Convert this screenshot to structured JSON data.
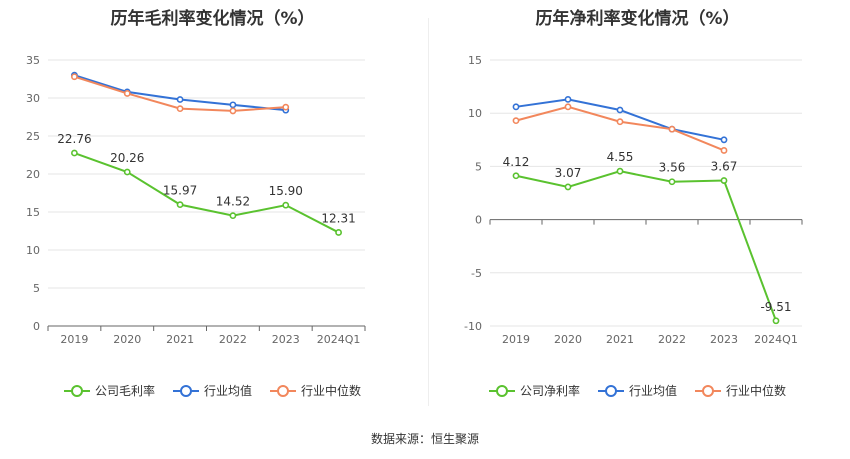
{
  "source_text": "数据来源：恒生聚源",
  "chart_data": [
    {
      "type": "line",
      "title": "历年毛利率变化情况（%）",
      "categories": [
        "2019",
        "2020",
        "2021",
        "2022",
        "2023",
        "2024Q1"
      ],
      "yticks": [
        "0",
        "5",
        "10",
        "15",
        "20",
        "25",
        "30",
        "35"
      ],
      "ylim": [
        0,
        35
      ],
      "grid": true,
      "legend_position": "bottom",
      "series": [
        {
          "name": "公司毛利率",
          "color": "#5ac22f",
          "values": [
            22.76,
            20.26,
            15.97,
            14.52,
            15.9,
            12.31
          ],
          "labels": [
            "22.76",
            "20.26",
            "15.97",
            "14.52",
            "15.90",
            "12.31"
          ]
        },
        {
          "name": "行业均值",
          "color": "#3372d6",
          "values": [
            33.0,
            30.8,
            29.8,
            29.1,
            28.4,
            null
          ]
        },
        {
          "name": "行业中位数",
          "color": "#f2875c",
          "values": [
            32.8,
            30.6,
            28.6,
            28.3,
            28.8,
            null
          ]
        }
      ]
    },
    {
      "type": "line",
      "title": "历年净利率变化情况（%）",
      "categories": [
        "2019",
        "2020",
        "2021",
        "2022",
        "2023",
        "2024Q1"
      ],
      "yticks": [
        "-10",
        "-5",
        "0",
        "5",
        "10",
        "15"
      ],
      "ylim": [
        -10,
        15
      ],
      "grid": true,
      "legend_position": "bottom",
      "series": [
        {
          "name": "公司净利率",
          "color": "#5ac22f",
          "values": [
            4.12,
            3.07,
            4.55,
            3.56,
            3.67,
            -9.51
          ],
          "labels": [
            "4.12",
            "3.07",
            "4.55",
            "3.56",
            "3.67",
            "-9.51"
          ]
        },
        {
          "name": "行业均值",
          "color": "#3372d6",
          "values": [
            10.6,
            11.3,
            10.3,
            8.5,
            7.5,
            null
          ]
        },
        {
          "name": "行业中位数",
          "color": "#f2875c",
          "values": [
            9.3,
            10.6,
            9.2,
            8.5,
            6.5,
            null
          ]
        }
      ]
    }
  ]
}
